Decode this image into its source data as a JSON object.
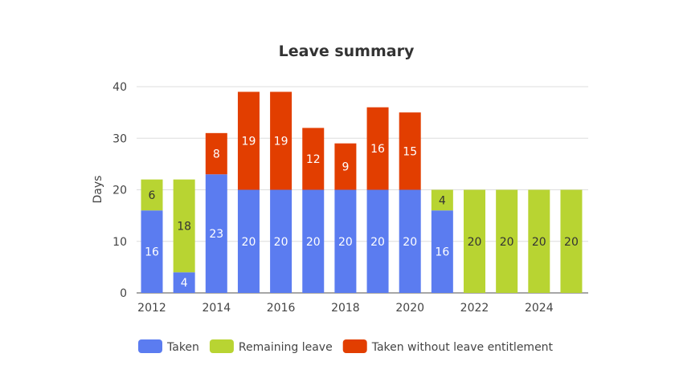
{
  "chart_data": {
    "type": "bar",
    "stacked": true,
    "title": "Leave summary",
    "xlabel": "",
    "ylabel": "Days",
    "ylim": [
      0,
      40
    ],
    "yticks": [
      0,
      10,
      20,
      30,
      40
    ],
    "grid": true,
    "legend_placement": "bottom",
    "categories": [
      "2012",
      "2013",
      "2014",
      "2015",
      "2016",
      "2017",
      "2018",
      "2019",
      "2020",
      "2021",
      "2022",
      "2023",
      "2024",
      "2025"
    ],
    "xtick_labels": [
      "2012",
      "2014",
      "2016",
      "2018",
      "2020",
      "2022",
      "2024"
    ],
    "series": [
      {
        "name": "Taken",
        "color": "#5b7cf0",
        "label_color": "#ffffff",
        "values": [
          16,
          4,
          23,
          20,
          20,
          20,
          20,
          20,
          20,
          16,
          0,
          0,
          0,
          0
        ]
      },
      {
        "name": "Remaining leave",
        "color": "#b8d432",
        "label_color": "#333333",
        "values": [
          6,
          18,
          0,
          0,
          0,
          0,
          0,
          0,
          0,
          4,
          20,
          20,
          20,
          20
        ]
      },
      {
        "name": "Taken without leave entitlement",
        "color": "#e23e00",
        "label_color": "#ffffff",
        "values": [
          0,
          0,
          8,
          19,
          19,
          12,
          9,
          16,
          15,
          0,
          0,
          0,
          0,
          0
        ]
      }
    ]
  }
}
